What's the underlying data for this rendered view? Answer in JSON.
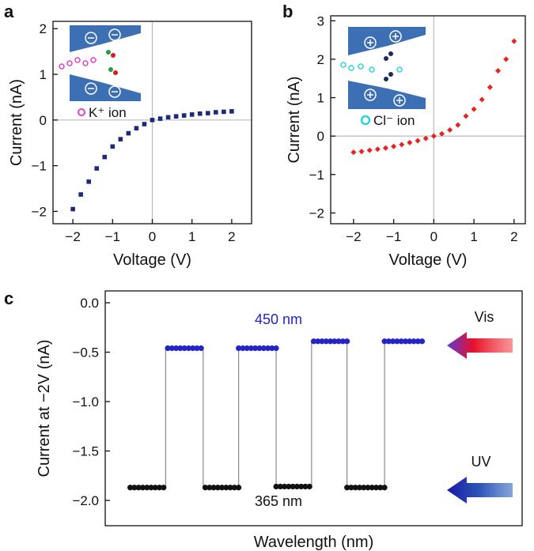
{
  "chart_data": [
    {
      "type": "scatter",
      "panel_label": "a",
      "xlabel": "Voltage (V)",
      "ylabel": "Current (nA)",
      "inset_label": "K⁺ ion",
      "xlim": [
        -2.5,
        2.5
      ],
      "ylim": [
        -2.27,
        2.16
      ],
      "xticks": [
        {
          "value": -2,
          "label": "−2"
        },
        {
          "value": -1,
          "label": "−1"
        },
        0,
        1,
        2
      ],
      "yticks": [
        {
          "value": -2,
          "label": "−2"
        },
        {
          "value": -1,
          "label": "−1"
        },
        0,
        1,
        2
      ],
      "zero_lines": true,
      "series": [
        {
          "color": "#1b2a7a",
          "marker": "square",
          "x": [
            -2,
            -1.8,
            -1.6,
            -1.4,
            -1.2,
            -1,
            -0.8,
            -0.6,
            -0.4,
            -0.2,
            0,
            0.2,
            0.4,
            0.6,
            0.8,
            1,
            1.2,
            1.4,
            1.6,
            1.8,
            2
          ],
          "values": [
            -1.95,
            -1.63,
            -1.35,
            -1.06,
            -0.81,
            -0.58,
            -0.42,
            -0.29,
            -0.18,
            -0.09,
            0,
            0.03,
            0.06,
            0.08,
            0.1,
            0.12,
            0.14,
            0.15,
            0.17,
            0.18,
            0.19
          ]
        }
      ]
    },
    {
      "type": "scatter",
      "panel_label": "b",
      "xlabel": "Voltage (V)",
      "ylabel": "Current (nA)",
      "inset_label": "Cl⁻ ion",
      "xlim": [
        -2.57,
        2.28
      ],
      "ylim": [
        -2.28,
        3.13
      ],
      "xticks": [
        {
          "value": -2,
          "label": "−2"
        },
        {
          "value": -1,
          "label": "−1"
        },
        0,
        1,
        2
      ],
      "yticks": [
        {
          "value": -2,
          "label": "−2"
        },
        {
          "value": -1,
          "label": "−1"
        },
        0,
        1,
        2,
        3
      ],
      "zero_lines": true,
      "series": [
        {
          "color": "#e8231f",
          "marker": "diamond",
          "x": [
            -2,
            -1.8,
            -1.6,
            -1.4,
            -1.2,
            -1,
            -0.8,
            -0.6,
            -0.4,
            -0.2,
            0,
            0.2,
            0.4,
            0.6,
            0.8,
            1,
            1.2,
            1.4,
            1.6,
            1.8,
            2
          ],
          "values": [
            -0.42,
            -0.4,
            -0.37,
            -0.34,
            -0.31,
            -0.27,
            -0.22,
            -0.17,
            -0.12,
            -0.06,
            0,
            0.06,
            0.16,
            0.29,
            0.52,
            0.7,
            0.95,
            1.27,
            1.7,
            2.0,
            2.47
          ]
        }
      ]
    },
    {
      "type": "line",
      "panel_label": "c",
      "xlabel": "Wavelength (nm)",
      "ylabel": "Current at −2V (nA)",
      "annotations": [
        "450 nm",
        "365 nm",
        "Vis",
        "UV"
      ],
      "xlim": [
        0,
        100
      ],
      "ylim": [
        -2.256,
        0.12
      ],
      "yticks": [
        {
          "value": 0,
          "label": "0.0"
        },
        {
          "value": -0.5,
          "label": "−0.5"
        },
        {
          "value": -1,
          "label": "−1.0"
        },
        {
          "value": -1.5,
          "label": "−1.5"
        },
        {
          "value": -2,
          "label": "−2.0"
        }
      ],
      "zero_lines": false,
      "series": [
        {
          "color": "#8a8a8a",
          "marker": "none",
          "x": [
            6,
            14.5,
            14.5,
            23.5,
            23.5,
            32,
            32,
            41,
            41,
            49.5,
            49.5,
            58,
            58,
            67,
            67,
            76
          ],
          "values": [
            -1.87,
            -1.87,
            -0.46,
            -0.46,
            -1.87,
            -1.87,
            -0.46,
            -0.46,
            -1.86,
            -1.86,
            -0.39,
            -0.39,
            -1.87,
            -1.87,
            -0.39,
            -0.39
          ]
        },
        {
          "color": "#111111",
          "marker": "circle",
          "x": [
            6,
            7,
            8,
            9,
            10,
            11,
            12,
            13,
            14,
            24,
            25,
            26,
            27,
            28,
            29,
            30,
            31,
            32,
            41,
            42,
            43,
            44,
            45,
            46,
            47,
            48,
            49,
            58,
            59,
            60,
            61,
            62,
            63,
            64,
            65,
            66,
            67
          ],
          "values": [
            -1.87,
            -1.87,
            -1.87,
            -1.87,
            -1.87,
            -1.87,
            -1.87,
            -1.87,
            -1.87,
            -1.87,
            -1.87,
            -1.87,
            -1.87,
            -1.87,
            -1.87,
            -1.87,
            -1.87,
            -1.87,
            -1.86,
            -1.86,
            -1.86,
            -1.86,
            -1.86,
            -1.86,
            -1.86,
            -1.86,
            -1.86,
            -1.87,
            -1.87,
            -1.87,
            -1.87,
            -1.87,
            -1.87,
            -1.87,
            -1.87,
            -1.87,
            -1.87
          ]
        },
        {
          "color": "#2424c8",
          "marker": "circle",
          "x": [
            15,
            16,
            17,
            18,
            19,
            20,
            21,
            22,
            23,
            32,
            33,
            34,
            35,
            36,
            37,
            38,
            39,
            40,
            41,
            50,
            51,
            52,
            53,
            54,
            55,
            56,
            57,
            58,
            67,
            68,
            69,
            70,
            71,
            72,
            73,
            74,
            75,
            76
          ],
          "values": [
            -0.46,
            -0.46,
            -0.46,
            -0.46,
            -0.46,
            -0.46,
            -0.46,
            -0.46,
            -0.46,
            -0.46,
            -0.46,
            -0.46,
            -0.46,
            -0.46,
            -0.46,
            -0.46,
            -0.46,
            -0.46,
            -0.46,
            -0.39,
            -0.39,
            -0.39,
            -0.39,
            -0.39,
            -0.39,
            -0.39,
            -0.39,
            -0.39,
            -0.39,
            -0.39,
            -0.39,
            -0.39,
            -0.39,
            -0.39,
            -0.39,
            -0.39,
            -0.39,
            -0.39
          ]
        }
      ]
    }
  ]
}
